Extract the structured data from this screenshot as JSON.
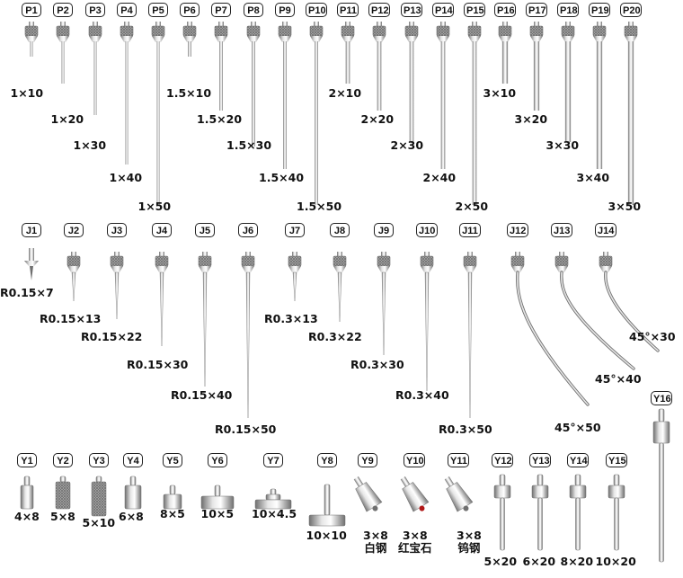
{
  "palette": {
    "steel_light": "#e6e6e6",
    "steel_mid": "#b5b5b5",
    "steel_dark": "#6f6f6f",
    "tag_border": "#222222",
    "text": "#111111",
    "ruby": "#b01818"
  },
  "p_series": [
    {
      "id": "P1",
      "label": "1×10"
    },
    {
      "id": "P2",
      "label": "1×20"
    },
    {
      "id": "P3",
      "label": "1×30"
    },
    {
      "id": "P4",
      "label": "1×40"
    },
    {
      "id": "P5",
      "label": "1×50"
    },
    {
      "id": "P6",
      "label": "1.5×10"
    },
    {
      "id": "P7",
      "label": "1.5×20"
    },
    {
      "id": "P8",
      "label": "1.5×30"
    },
    {
      "id": "P9",
      "label": "1.5×40"
    },
    {
      "id": "P10",
      "label": "1.5×50"
    },
    {
      "id": "P11",
      "label": "2×10"
    },
    {
      "id": "P12",
      "label": "2×20"
    },
    {
      "id": "P13",
      "label": "2×30"
    },
    {
      "id": "P14",
      "label": "2×40"
    },
    {
      "id": "P15",
      "label": "2×50"
    },
    {
      "id": "P16",
      "label": "3×10"
    },
    {
      "id": "P17",
      "label": "3×20"
    },
    {
      "id": "P18",
      "label": "3×30"
    },
    {
      "id": "P19",
      "label": "3×40"
    },
    {
      "id": "P20",
      "label": "3×50"
    }
  ],
  "j_series": [
    {
      "id": "J1",
      "label": "R0.15×7"
    },
    {
      "id": "J2",
      "label": "R0.15×13"
    },
    {
      "id": "J3",
      "label": "R0.15×22"
    },
    {
      "id": "J4",
      "label": "R0.15×30"
    },
    {
      "id": "J5",
      "label": "R0.15×40"
    },
    {
      "id": "J6",
      "label": "R0.15×50"
    },
    {
      "id": "J7",
      "label": "R0.3×13"
    },
    {
      "id": "J8",
      "label": "R0.3×22"
    },
    {
      "id": "J9",
      "label": "R0.3×30"
    },
    {
      "id": "J10",
      "label": "R0.3×40"
    },
    {
      "id": "J11",
      "label": "R0.3×50"
    },
    {
      "id": "J12",
      "label": "45°×50"
    },
    {
      "id": "J13",
      "label": "45°×40"
    },
    {
      "id": "J14",
      "label": "45°×30"
    }
  ],
  "y_series": [
    {
      "id": "Y1",
      "label": "4×8",
      "sub": ""
    },
    {
      "id": "Y2",
      "label": "5×8",
      "sub": ""
    },
    {
      "id": "Y3",
      "label": "5×10",
      "sub": ""
    },
    {
      "id": "Y4",
      "label": "6×8",
      "sub": ""
    },
    {
      "id": "Y5",
      "label": "8×5",
      "sub": ""
    },
    {
      "id": "Y6",
      "label": "10×5",
      "sub": ""
    },
    {
      "id": "Y7",
      "label": "10×4.5",
      "sub": ""
    },
    {
      "id": "Y8",
      "label": "10×10",
      "sub": ""
    },
    {
      "id": "Y9",
      "label": "3×8",
      "sub": "白钢"
    },
    {
      "id": "Y10",
      "label": "3×8",
      "sub": "红宝石"
    },
    {
      "id": "Y11",
      "label": "3×8",
      "sub": "钨钢"
    },
    {
      "id": "Y12",
      "label": "5×20",
      "sub": ""
    },
    {
      "id": "Y13",
      "label": "6×20",
      "sub": ""
    },
    {
      "id": "Y14",
      "label": "8×20",
      "sub": ""
    },
    {
      "id": "Y15",
      "label": "10×20",
      "sub": ""
    },
    {
      "id": "Y16",
      "label": "",
      "sub": ""
    }
  ]
}
